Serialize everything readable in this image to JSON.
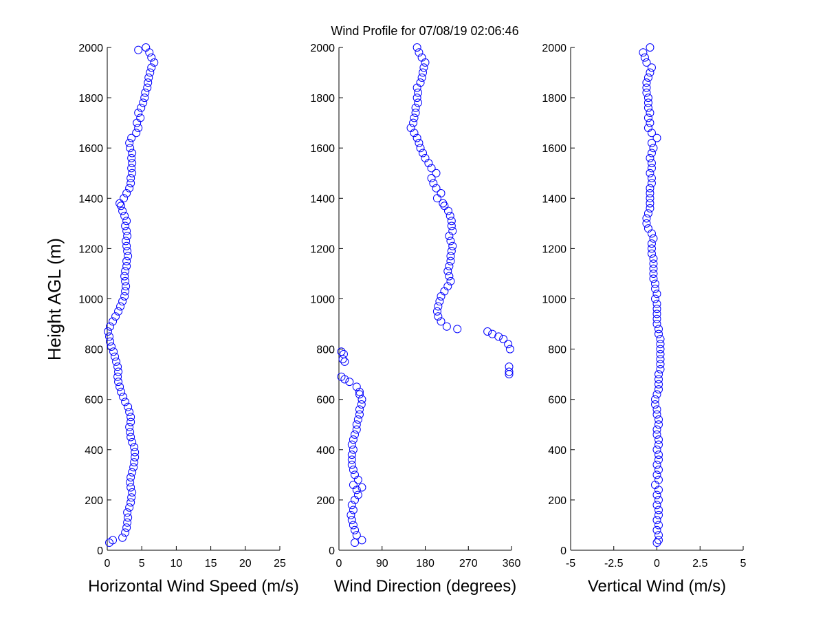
{
  "title": "Wind Profile for  07/08/19 02:06:46",
  "colors": {
    "marker": "#0000ff",
    "axis": "#000000",
    "background": "#ffffff"
  },
  "chart_data": [
    {
      "type": "scatter",
      "xlabel": "Horizontal Wind Speed (m/s)",
      "ylabel": "Height AGL (m)",
      "xlim": [
        0,
        25
      ],
      "ylim": [
        0,
        2000
      ],
      "xticks": [
        "0",
        "5",
        "10",
        "15",
        "20",
        "25"
      ],
      "xtick_values": [
        0,
        5,
        10,
        15,
        20,
        25
      ],
      "yticks": [
        "0",
        "200",
        "400",
        "600",
        "800",
        "1000",
        "1200",
        "1400",
        "1600",
        "1800",
        "2000"
      ],
      "ytick_values": [
        0,
        200,
        400,
        600,
        800,
        1000,
        1200,
        1400,
        1600,
        1800,
        2000
      ],
      "grid": false,
      "marker": "open-circle",
      "points": [
        [
          0.3,
          30
        ],
        [
          0.8,
          40
        ],
        [
          2.2,
          50
        ],
        [
          2.6,
          70
        ],
        [
          2.8,
          90
        ],
        [
          2.9,
          110
        ],
        [
          3.0,
          130
        ],
        [
          2.9,
          150
        ],
        [
          3.2,
          170
        ],
        [
          3.4,
          190
        ],
        [
          3.5,
          210
        ],
        [
          3.6,
          230
        ],
        [
          3.4,
          250
        ],
        [
          3.3,
          270
        ],
        [
          3.4,
          290
        ],
        [
          3.6,
          310
        ],
        [
          3.8,
          330
        ],
        [
          3.9,
          350
        ],
        [
          4.0,
          370
        ],
        [
          4.0,
          390
        ],
        [
          3.9,
          410
        ],
        [
          3.6,
          430
        ],
        [
          3.4,
          450
        ],
        [
          3.3,
          470
        ],
        [
          3.2,
          490
        ],
        [
          3.4,
          510
        ],
        [
          3.4,
          530
        ],
        [
          3.2,
          550
        ],
        [
          3.0,
          570
        ],
        [
          2.6,
          590
        ],
        [
          2.3,
          610
        ],
        [
          2.0,
          630
        ],
        [
          1.8,
          650
        ],
        [
          1.6,
          670
        ],
        [
          1.5,
          690
        ],
        [
          1.6,
          710
        ],
        [
          1.5,
          730
        ],
        [
          1.3,
          750
        ],
        [
          1.1,
          770
        ],
        [
          0.9,
          790
        ],
        [
          0.6,
          810
        ],
        [
          0.4,
          830
        ],
        [
          0.3,
          850
        ],
        [
          0.1,
          870
        ],
        [
          0.4,
          890
        ],
        [
          0.8,
          910
        ],
        [
          1.2,
          930
        ],
        [
          1.6,
          950
        ],
        [
          1.9,
          970
        ],
        [
          2.2,
          990
        ],
        [
          2.5,
          1010
        ],
        [
          2.6,
          1030
        ],
        [
          2.7,
          1050
        ],
        [
          2.6,
          1070
        ],
        [
          2.5,
          1090
        ],
        [
          2.6,
          1110
        ],
        [
          2.8,
          1130
        ],
        [
          2.8,
          1150
        ],
        [
          3.0,
          1170
        ],
        [
          2.9,
          1190
        ],
        [
          2.8,
          1210
        ],
        [
          2.7,
          1230
        ],
        [
          2.9,
          1250
        ],
        [
          2.8,
          1270
        ],
        [
          2.6,
          1290
        ],
        [
          2.8,
          1310
        ],
        [
          2.5,
          1330
        ],
        [
          2.2,
          1350
        ],
        [
          2.0,
          1370
        ],
        [
          1.8,
          1380
        ],
        [
          2.4,
          1400
        ],
        [
          2.8,
          1420
        ],
        [
          3.2,
          1440
        ],
        [
          3.4,
          1460
        ],
        [
          3.4,
          1480
        ],
        [
          3.6,
          1500
        ],
        [
          3.5,
          1520
        ],
        [
          3.6,
          1540
        ],
        [
          3.5,
          1560
        ],
        [
          3.6,
          1580
        ],
        [
          3.3,
          1600
        ],
        [
          3.2,
          1620
        ],
        [
          3.5,
          1640
        ],
        [
          4.2,
          1660
        ],
        [
          4.5,
          1680
        ],
        [
          4.3,
          1700
        ],
        [
          4.8,
          1720
        ],
        [
          4.5,
          1740
        ],
        [
          4.9,
          1760
        ],
        [
          5.2,
          1780
        ],
        [
          5.4,
          1800
        ],
        [
          5.5,
          1820
        ],
        [
          5.8,
          1840
        ],
        [
          5.9,
          1860
        ],
        [
          6.0,
          1880
        ],
        [
          6.2,
          1900
        ],
        [
          6.4,
          1920
        ],
        [
          6.8,
          1940
        ],
        [
          6.4,
          1960
        ],
        [
          6.1,
          1980
        ],
        [
          5.6,
          2000
        ],
        [
          4.5,
          1990
        ]
      ]
    },
    {
      "type": "scatter",
      "xlabel": "Wind Direction (degrees)",
      "xlim": [
        0,
        360
      ],
      "ylim": [
        0,
        2000
      ],
      "xticks": [
        "0",
        "90",
        "180",
        "270",
        "360"
      ],
      "xtick_values": [
        0,
        90,
        180,
        270,
        360
      ],
      "yticks": [
        "0",
        "200",
        "400",
        "600",
        "800",
        "1000",
        "1200",
        "1400",
        "1600",
        "1800",
        "2000"
      ],
      "ytick_values": [
        0,
        200,
        400,
        600,
        800,
        1000,
        1200,
        1400,
        1600,
        1800,
        2000
      ],
      "grid": false,
      "marker": "open-circle",
      "points": [
        [
          33,
          30
        ],
        [
          48,
          40
        ],
        [
          37,
          60
        ],
        [
          33,
          80
        ],
        [
          30,
          100
        ],
        [
          27,
          120
        ],
        [
          25,
          140
        ],
        [
          30,
          160
        ],
        [
          27,
          180
        ],
        [
          33,
          200
        ],
        [
          40,
          220
        ],
        [
          37,
          240
        ],
        [
          48,
          250
        ],
        [
          30,
          260
        ],
        [
          40,
          280
        ],
        [
          33,
          300
        ],
        [
          30,
          320
        ],
        [
          27,
          340
        ],
        [
          27,
          360
        ],
        [
          27,
          380
        ],
        [
          30,
          400
        ],
        [
          27,
          420
        ],
        [
          30,
          440
        ],
        [
          33,
          460
        ],
        [
          37,
          480
        ],
        [
          37,
          500
        ],
        [
          40,
          520
        ],
        [
          43,
          540
        ],
        [
          43,
          560
        ],
        [
          47,
          580
        ],
        [
          48,
          600
        ],
        [
          43,
          620
        ],
        [
          43,
          630
        ],
        [
          37,
          650
        ],
        [
          22,
          670
        ],
        [
          12,
          680
        ],
        [
          5,
          690
        ],
        [
          12,
          750
        ],
        [
          8,
          760
        ],
        [
          10,
          780
        ],
        [
          5,
          790
        ],
        [
          355,
          700
        ],
        [
          355,
          710
        ],
        [
          355,
          730
        ],
        [
          357,
          800
        ],
        [
          353,
          820
        ],
        [
          343,
          840
        ],
        [
          333,
          850
        ],
        [
          320,
          860
        ],
        [
          310,
          870
        ],
        [
          247,
          880
        ],
        [
          225,
          890
        ],
        [
          213,
          910
        ],
        [
          207,
          930
        ],
        [
          205,
          950
        ],
        [
          207,
          970
        ],
        [
          210,
          990
        ],
        [
          213,
          1010
        ],
        [
          220,
          1030
        ],
        [
          227,
          1050
        ],
        [
          233,
          1070
        ],
        [
          230,
          1090
        ],
        [
          227,
          1110
        ],
        [
          230,
          1130
        ],
        [
          233,
          1150
        ],
        [
          233,
          1170
        ],
        [
          235,
          1190
        ],
        [
          237,
          1210
        ],
        [
          233,
          1230
        ],
        [
          230,
          1250
        ],
        [
          237,
          1270
        ],
        [
          235,
          1290
        ],
        [
          235,
          1310
        ],
        [
          232,
          1330
        ],
        [
          228,
          1350
        ],
        [
          220,
          1370
        ],
        [
          217,
          1380
        ],
        [
          205,
          1400
        ],
        [
          213,
          1420
        ],
        [
          203,
          1440
        ],
        [
          197,
          1460
        ],
        [
          193,
          1480
        ],
        [
          203,
          1500
        ],
        [
          193,
          1520
        ],
        [
          187,
          1540
        ],
        [
          180,
          1560
        ],
        [
          175,
          1580
        ],
        [
          170,
          1600
        ],
        [
          167,
          1620
        ],
        [
          163,
          1640
        ],
        [
          157,
          1660
        ],
        [
          150,
          1680
        ],
        [
          155,
          1700
        ],
        [
          157,
          1720
        ],
        [
          160,
          1740
        ],
        [
          160,
          1760
        ],
        [
          165,
          1780
        ],
        [
          163,
          1800
        ],
        [
          165,
          1820
        ],
        [
          163,
          1840
        ],
        [
          170,
          1860
        ],
        [
          173,
          1880
        ],
        [
          175,
          1900
        ],
        [
          177,
          1920
        ],
        [
          180,
          1940
        ],
        [
          173,
          1960
        ],
        [
          167,
          1980
        ],
        [
          163,
          2000
        ]
      ]
    },
    {
      "type": "scatter",
      "xlabel": "Vertical Wind (m/s)",
      "xlim": [
        -5,
        5
      ],
      "ylim": [
        0,
        2000
      ],
      "xticks": [
        "-5",
        "-2.5",
        "0",
        "2.5",
        "5"
      ],
      "xtick_values": [
        -5,
        -2.5,
        0,
        2.5,
        5
      ],
      "yticks": [
        "0",
        "200",
        "400",
        "600",
        "800",
        "1000",
        "1200",
        "1400",
        "1600",
        "1800",
        "2000"
      ],
      "ytick_values": [
        0,
        200,
        400,
        600,
        800,
        1000,
        1200,
        1400,
        1600,
        1800,
        2000
      ],
      "grid": false,
      "marker": "open-circle",
      "points": [
        [
          0.0,
          30
        ],
        [
          0.1,
          40
        ],
        [
          0.1,
          60
        ],
        [
          0.0,
          80
        ],
        [
          0.1,
          100
        ],
        [
          0.0,
          120
        ],
        [
          0.1,
          140
        ],
        [
          0.1,
          160
        ],
        [
          0.0,
          180
        ],
        [
          0.1,
          200
        ],
        [
          0.0,
          220
        ],
        [
          0.1,
          240
        ],
        [
          -0.1,
          260
        ],
        [
          0.1,
          280
        ],
        [
          0.0,
          300
        ],
        [
          0.1,
          320
        ],
        [
          0.0,
          340
        ],
        [
          0.1,
          360
        ],
        [
          0.1,
          380
        ],
        [
          0.0,
          400
        ],
        [
          0.1,
          420
        ],
        [
          0.1,
          440
        ],
        [
          0.0,
          460
        ],
        [
          0.0,
          480
        ],
        [
          0.1,
          500
        ],
        [
          0.1,
          520
        ],
        [
          0.0,
          540
        ],
        [
          0.0,
          560
        ],
        [
          -0.1,
          580
        ],
        [
          -0.1,
          600
        ],
        [
          0.0,
          620
        ],
        [
          0.1,
          640
        ],
        [
          0.1,
          660
        ],
        [
          0.1,
          680
        ],
        [
          0.1,
          700
        ],
        [
          0.2,
          720
        ],
        [
          0.2,
          740
        ],
        [
          0.2,
          760
        ],
        [
          0.2,
          780
        ],
        [
          0.2,
          800
        ],
        [
          0.2,
          820
        ],
        [
          0.2,
          840
        ],
        [
          0.1,
          860
        ],
        [
          0.1,
          880
        ],
        [
          0.0,
          900
        ],
        [
          0.0,
          920
        ],
        [
          0.0,
          940
        ],
        [
          0.0,
          960
        ],
        [
          0.0,
          980
        ],
        [
          -0.1,
          1000
        ],
        [
          0.0,
          1020
        ],
        [
          -0.1,
          1040
        ],
        [
          -0.1,
          1060
        ],
        [
          -0.2,
          1080
        ],
        [
          -0.2,
          1100
        ],
        [
          -0.2,
          1120
        ],
        [
          -0.2,
          1140
        ],
        [
          -0.2,
          1160
        ],
        [
          -0.3,
          1180
        ],
        [
          -0.3,
          1200
        ],
        [
          -0.3,
          1220
        ],
        [
          -0.2,
          1240
        ],
        [
          -0.3,
          1260
        ],
        [
          -0.5,
          1280
        ],
        [
          -0.6,
          1300
        ],
        [
          -0.6,
          1320
        ],
        [
          -0.5,
          1340
        ],
        [
          -0.4,
          1360
        ],
        [
          -0.4,
          1380
        ],
        [
          -0.4,
          1400
        ],
        [
          -0.4,
          1420
        ],
        [
          -0.4,
          1440
        ],
        [
          -0.3,
          1460
        ],
        [
          -0.3,
          1480
        ],
        [
          -0.4,
          1500
        ],
        [
          -0.3,
          1520
        ],
        [
          -0.3,
          1540
        ],
        [
          -0.4,
          1560
        ],
        [
          -0.3,
          1580
        ],
        [
          -0.2,
          1600
        ],
        [
          -0.3,
          1620
        ],
        [
          0.0,
          1640
        ],
        [
          -0.3,
          1660
        ],
        [
          -0.5,
          1680
        ],
        [
          -0.4,
          1700
        ],
        [
          -0.5,
          1720
        ],
        [
          -0.4,
          1740
        ],
        [
          -0.5,
          1760
        ],
        [
          -0.5,
          1780
        ],
        [
          -0.5,
          1800
        ],
        [
          -0.6,
          1820
        ],
        [
          -0.6,
          1840
        ],
        [
          -0.6,
          1860
        ],
        [
          -0.5,
          1880
        ],
        [
          -0.4,
          1900
        ],
        [
          -0.3,
          1920
        ],
        [
          -0.6,
          1940
        ],
        [
          -0.7,
          1960
        ],
        [
          -0.8,
          1980
        ],
        [
          -0.4,
          2000
        ]
      ]
    }
  ]
}
